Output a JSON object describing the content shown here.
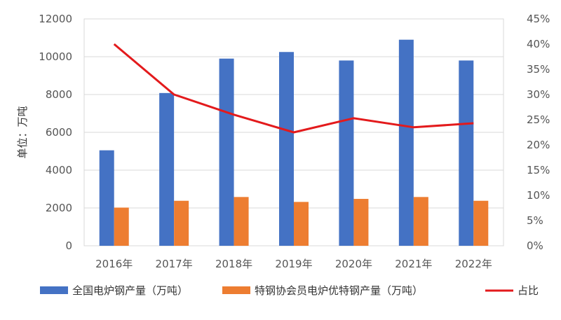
{
  "chart_data": {
    "type": "bar",
    "categories": [
      "2016年",
      "2017年",
      "2018年",
      "2019年",
      "2020年",
      "2021年",
      "2022年"
    ],
    "series": [
      {
        "name": "全国电炉钢产量（万吨）",
        "values": [
          5050,
          8080,
          9900,
          10250,
          9800,
          10900,
          9800
        ],
        "color": "#4472C4",
        "axis": "left",
        "kind": "bar"
      },
      {
        "name": "特钢协会员电炉优特钢产量（万吨）",
        "values": [
          2020,
          2380,
          2580,
          2320,
          2480,
          2580,
          2380
        ],
        "color": "#ED7D31",
        "axis": "left",
        "kind": "bar"
      },
      {
        "name": "占比",
        "values": [
          40.0,
          30.0,
          26.0,
          22.5,
          25.3,
          23.5,
          24.3
        ],
        "color": "#E31A1C",
        "axis": "right",
        "kind": "line"
      }
    ],
    "ylabel": "单位：万吨",
    "ylim": [
      0,
      12000
    ],
    "yticks": [
      "0",
      "2000",
      "4000",
      "6000",
      "8000",
      "10000",
      "12000"
    ],
    "y2lim": [
      0,
      45
    ],
    "y2ticks": [
      "0%",
      "5%",
      "10%",
      "15%",
      "20%",
      "25%",
      "30%",
      "35%",
      "40%",
      "45%"
    ],
    "legend_position": "bottom"
  }
}
